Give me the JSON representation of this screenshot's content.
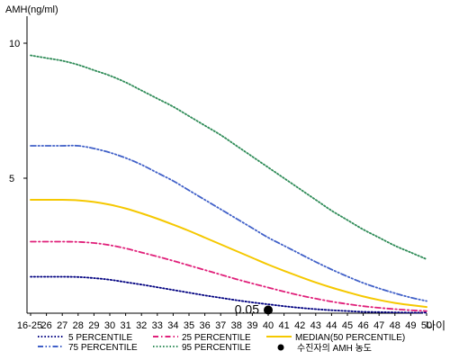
{
  "chart_data": {
    "type": "line",
    "title": "",
    "ylabel": "AMH(ng/ml)",
    "xlabel": "나이",
    "ylim": [
      0,
      11
    ],
    "y_ticks": [
      "5",
      "10"
    ],
    "x_tick_labels": [
      "16-25",
      "26",
      "27",
      "28",
      "29",
      "30",
      "31",
      "32",
      "33",
      "34",
      "35",
      "36",
      "37",
      "38",
      "39",
      "40",
      "41",
      "42",
      "43",
      "44",
      "45",
      "46",
      "47",
      "48",
      "49",
      "50"
    ],
    "grid": false,
    "legend_position": "bottom",
    "series": [
      {
        "name": "5 PERCENTILE",
        "color": "#000080",
        "dash": "dot",
        "values": [
          1.35,
          1.35,
          1.35,
          1.34,
          1.3,
          1.24,
          1.15,
          1.06,
          0.96,
          0.86,
          0.76,
          0.66,
          0.57,
          0.48,
          0.4,
          0.33,
          0.26,
          0.2,
          0.15,
          0.11,
          0.08,
          0.05,
          0.04,
          0.03,
          0.02,
          0.02
        ]
      },
      {
        "name": "25 PERCENTILE",
        "color": "#e0207a",
        "dash": "dashdot",
        "values": [
          2.65,
          2.65,
          2.65,
          2.64,
          2.6,
          2.52,
          2.4,
          2.25,
          2.1,
          1.94,
          1.77,
          1.6,
          1.43,
          1.26,
          1.1,
          0.95,
          0.8,
          0.66,
          0.54,
          0.43,
          0.34,
          0.26,
          0.2,
          0.15,
          0.11,
          0.08
        ]
      },
      {
        "name": "75 PERCENTILE",
        "color": "#4060c8",
        "dash": "dashdotdot",
        "values": [
          6.2,
          6.2,
          6.2,
          6.2,
          6.1,
          5.95,
          5.75,
          5.5,
          5.2,
          4.9,
          4.55,
          4.2,
          3.85,
          3.5,
          3.15,
          2.8,
          2.5,
          2.2,
          1.9,
          1.62,
          1.36,
          1.12,
          0.92,
          0.74,
          0.58,
          0.45
        ]
      },
      {
        "name": "95 PERCENTILE",
        "color": "#2e8b57",
        "dash": "dot",
        "values": [
          9.55,
          9.45,
          9.35,
          9.2,
          9.0,
          8.8,
          8.55,
          8.25,
          7.95,
          7.65,
          7.3,
          6.95,
          6.6,
          6.2,
          5.8,
          5.4,
          5.0,
          4.6,
          4.2,
          3.8,
          3.45,
          3.1,
          2.8,
          2.5,
          2.25,
          2.0
        ]
      },
      {
        "name": "MEDIAN(50 PERCENTILE)",
        "color": "#f5c800",
        "dash": "solid",
        "values": [
          4.2,
          4.2,
          4.2,
          4.18,
          4.12,
          4.02,
          3.88,
          3.7,
          3.5,
          3.28,
          3.05,
          2.8,
          2.55,
          2.3,
          2.05,
          1.8,
          1.57,
          1.35,
          1.14,
          0.95,
          0.78,
          0.62,
          0.49,
          0.38,
          0.3,
          0.23
        ]
      }
    ],
    "marker": {
      "legend_label": "수진자의 AMH 농도",
      "x_index": 15,
      "y": 0.05,
      "label": "0.05",
      "color": "#000000"
    }
  }
}
